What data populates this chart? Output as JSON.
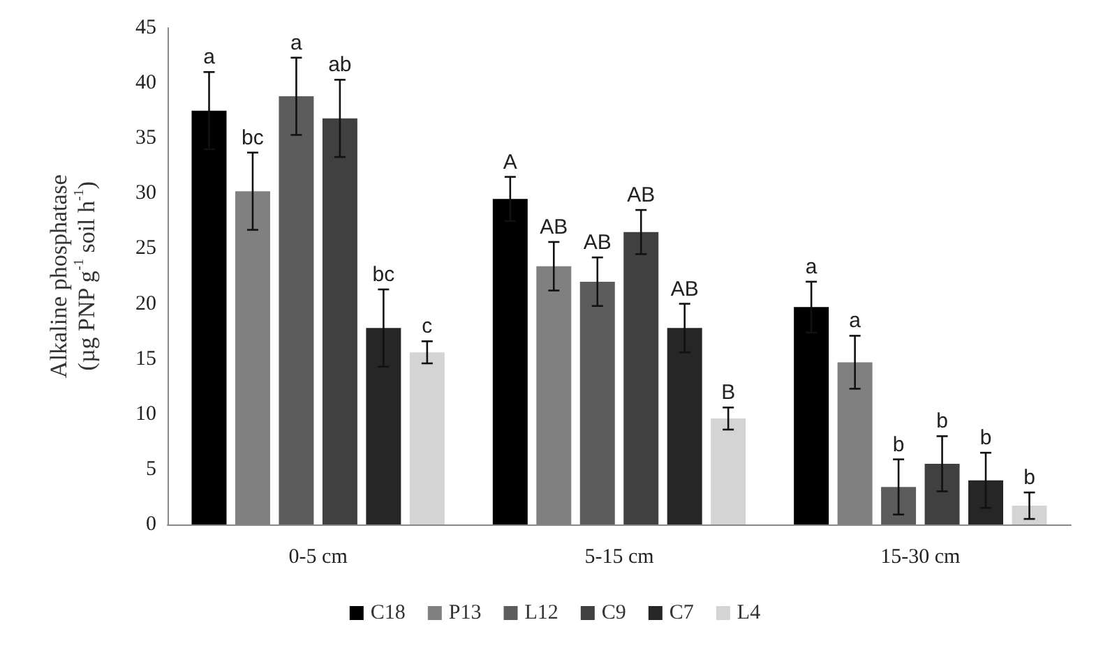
{
  "chart_data": {
    "type": "bar",
    "ylabel": "Alkaline phosphatase\n(µg PNP g$^{-1}$ soil h$^{-1}$)",
    "categories": [
      "0-5 cm",
      "5-15 cm",
      "15-30 cm"
    ],
    "ylim": [
      0,
      45
    ],
    "yticks": [
      0,
      5,
      10,
      15,
      20,
      25,
      30,
      35,
      40,
      45
    ],
    "grid": false,
    "legend": "bottom",
    "series": [
      {
        "name": "C18",
        "color": "#000000",
        "values": [
          37.5,
          29.5,
          19.7
        ],
        "errors": [
          3.5,
          2,
          2.3
        ],
        "value_labels": [
          "a",
          "A",
          "a"
        ]
      },
      {
        "name": "P13",
        "color": "#808080",
        "values": [
          30.2,
          23.4,
          14.7
        ],
        "errors": [
          3.5,
          2.2,
          2.4
        ],
        "value_labels": [
          "bc",
          "AB",
          "a"
        ]
      },
      {
        "name": "L12",
        "color": "#5c5c5c",
        "values": [
          38.8,
          22,
          3.4
        ],
        "errors": [
          3.5,
          2.2,
          2.5
        ],
        "value_labels": [
          "a",
          "AB",
          "b"
        ]
      },
      {
        "name": "C9",
        "color": "#404040",
        "values": [
          36.8,
          26.5,
          5.5
        ],
        "errors": [
          3.5,
          2,
          2.5
        ],
        "value_labels": [
          "ab",
          "AB",
          "b"
        ]
      },
      {
        "name": "C7",
        "color": "#262626",
        "values": [
          17.8,
          17.8,
          4
        ],
        "errors": [
          3.5,
          2.2,
          2.5
        ],
        "value_labels": [
          "bc",
          "AB",
          "b"
        ]
      },
      {
        "name": "L4",
        "color": "#d4d4d4",
        "values": [
          15.6,
          9.6,
          1.7
        ],
        "errors": [
          1,
          1,
          1.2
        ],
        "value_labels": [
          "c",
          "B",
          "b"
        ]
      }
    ]
  }
}
